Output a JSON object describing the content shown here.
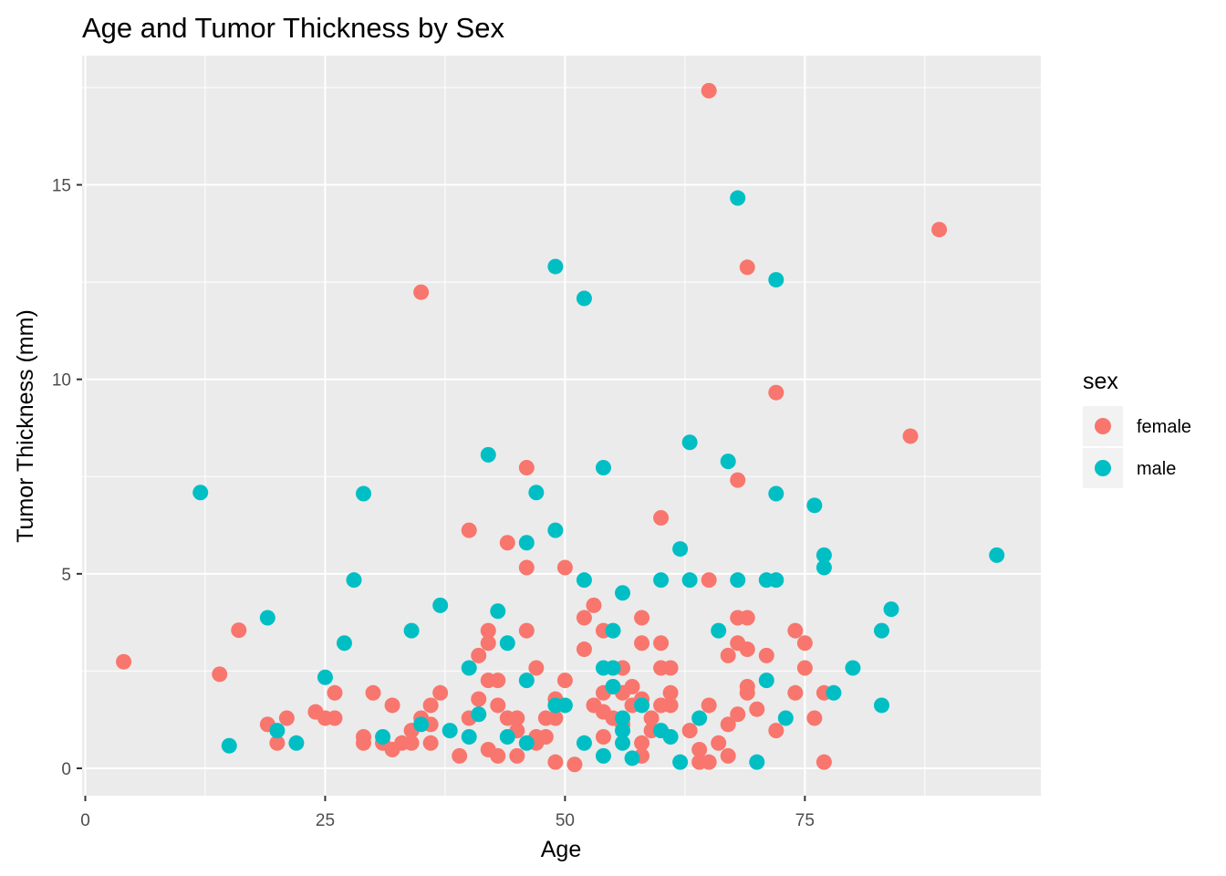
{
  "chart_data": {
    "type": "scatter",
    "title": "Age and Tumor Thickness by Sex",
    "xlabel": "Age",
    "ylabel": "Tumor Thickness (mm)",
    "xlim": [
      0,
      100
    ],
    "ylim": [
      -0.7,
      18
    ],
    "x_ticks": [
      0,
      25,
      50,
      75
    ],
    "x_tick_labels": [
      "0",
      "25",
      "50",
      "75"
    ],
    "y_ticks": [
      0,
      5,
      10,
      15
    ],
    "y_tick_labels": [
      "0",
      "5",
      "10",
      "15"
    ],
    "grid": true,
    "legend_title": "sex",
    "legend_position": "right",
    "series": [
      {
        "name": "female",
        "color": "#F8766D",
        "points": [
          [
            4,
            2.74
          ],
          [
            14,
            2.42
          ],
          [
            16,
            3.55
          ],
          [
            19,
            1.13
          ],
          [
            20,
            0.65
          ],
          [
            21,
            1.29
          ],
          [
            24,
            1.45
          ],
          [
            25,
            1.29
          ],
          [
            26,
            1.94
          ],
          [
            26,
            1.29
          ],
          [
            29,
            0.81
          ],
          [
            29,
            0.65
          ],
          [
            30,
            1.94
          ],
          [
            31,
            0.65
          ],
          [
            32,
            1.62
          ],
          [
            32,
            0.48
          ],
          [
            33,
            0.65
          ],
          [
            34,
            0.97
          ],
          [
            34,
            0.65
          ],
          [
            35,
            12.24
          ],
          [
            35,
            1.29
          ],
          [
            36,
            1.62
          ],
          [
            36,
            1.13
          ],
          [
            36,
            0.65
          ],
          [
            37,
            1.94
          ],
          [
            39,
            0.32
          ],
          [
            40,
            6.12
          ],
          [
            40,
            1.29
          ],
          [
            41,
            2.9
          ],
          [
            41,
            1.78
          ],
          [
            42,
            3.54
          ],
          [
            42,
            3.22
          ],
          [
            42,
            2.26
          ],
          [
            42,
            0.48
          ],
          [
            43,
            2.26
          ],
          [
            43,
            1.62
          ],
          [
            43,
            0.32
          ],
          [
            44,
            5.8
          ],
          [
            44,
            1.29
          ],
          [
            45,
            1.29
          ],
          [
            45,
            0.97
          ],
          [
            45,
            0.32
          ],
          [
            46,
            7.73
          ],
          [
            46,
            5.16
          ],
          [
            46,
            3.54
          ],
          [
            47,
            2.58
          ],
          [
            47,
            0.81
          ],
          [
            47,
            0.65
          ],
          [
            48,
            1.29
          ],
          [
            48,
            0.81
          ],
          [
            49,
            1.78
          ],
          [
            49,
            1.29
          ],
          [
            49,
            0.16
          ],
          [
            50,
            5.16
          ],
          [
            50,
            2.26
          ],
          [
            51,
            0.1
          ],
          [
            52,
            3.87
          ],
          [
            52,
            3.06
          ],
          [
            53,
            4.19
          ],
          [
            53,
            1.62
          ],
          [
            54,
            3.54
          ],
          [
            54,
            1.94
          ],
          [
            54,
            1.45
          ],
          [
            54,
            0.81
          ],
          [
            55,
            1.29
          ],
          [
            56,
            2.58
          ],
          [
            56,
            1.94
          ],
          [
            56,
            1.13
          ],
          [
            57,
            2.1
          ],
          [
            57,
            1.62
          ],
          [
            58,
            3.87
          ],
          [
            58,
            3.22
          ],
          [
            58,
            1.78
          ],
          [
            58,
            0.65
          ],
          [
            58,
            0.32
          ],
          [
            59,
            1.29
          ],
          [
            59,
            0.97
          ],
          [
            60,
            6.44
          ],
          [
            60,
            3.22
          ],
          [
            60,
            2.58
          ],
          [
            60,
            1.62
          ],
          [
            61,
            2.58
          ],
          [
            61,
            1.94
          ],
          [
            61,
            1.62
          ],
          [
            63,
            0.97
          ],
          [
            64,
            0.48
          ],
          [
            64,
            0.16
          ],
          [
            65,
            17.42
          ],
          [
            65,
            4.84
          ],
          [
            65,
            1.62
          ],
          [
            65,
            0.16
          ],
          [
            66,
            0.65
          ],
          [
            67,
            2.9
          ],
          [
            67,
            1.13
          ],
          [
            67,
            0.32
          ],
          [
            68,
            7.41
          ],
          [
            68,
            3.87
          ],
          [
            68,
            3.22
          ],
          [
            68,
            1.39
          ],
          [
            69,
            12.88
          ],
          [
            69,
            3.87
          ],
          [
            69,
            3.06
          ],
          [
            69,
            2.1
          ],
          [
            69,
            1.94
          ],
          [
            70,
            1.52
          ],
          [
            71,
            2.9
          ],
          [
            72,
            9.66
          ],
          [
            72,
            0.97
          ],
          [
            74,
            3.54
          ],
          [
            74,
            1.94
          ],
          [
            75,
            3.22
          ],
          [
            75,
            2.58
          ],
          [
            76,
            1.29
          ],
          [
            77,
            1.94
          ],
          [
            77,
            0.16
          ],
          [
            86,
            8.54
          ],
          [
            89,
            13.85
          ]
        ]
      },
      {
        "name": "male",
        "color": "#00BFC4",
        "points": [
          [
            12,
            7.09
          ],
          [
            15,
            0.58
          ],
          [
            19,
            3.87
          ],
          [
            20,
            0.97
          ],
          [
            22,
            0.65
          ],
          [
            25,
            2.34
          ],
          [
            27,
            3.22
          ],
          [
            28,
            4.84
          ],
          [
            29,
            7.06
          ],
          [
            31,
            0.81
          ],
          [
            34,
            3.54
          ],
          [
            35,
            1.13
          ],
          [
            37,
            4.19
          ],
          [
            38,
            0.97
          ],
          [
            40,
            2.58
          ],
          [
            40,
            0.81
          ],
          [
            41,
            1.39
          ],
          [
            42,
            8.06
          ],
          [
            43,
            4.04
          ],
          [
            44,
            3.22
          ],
          [
            44,
            0.81
          ],
          [
            46,
            5.8
          ],
          [
            46,
            2.26
          ],
          [
            46,
            0.65
          ],
          [
            47,
            7.09
          ],
          [
            49,
            12.9
          ],
          [
            49,
            6.12
          ],
          [
            49,
            1.62
          ],
          [
            50,
            1.62
          ],
          [
            52,
            12.08
          ],
          [
            52,
            4.84
          ],
          [
            52,
            0.65
          ],
          [
            54,
            7.73
          ],
          [
            54,
            2.58
          ],
          [
            54,
            0.32
          ],
          [
            55,
            3.54
          ],
          [
            55,
            2.58
          ],
          [
            55,
            2.1
          ],
          [
            56,
            4.51
          ],
          [
            56,
            1.29
          ],
          [
            56,
            0.97
          ],
          [
            56,
            0.65
          ],
          [
            57,
            0.26
          ],
          [
            58,
            1.62
          ],
          [
            60,
            4.84
          ],
          [
            60,
            0.97
          ],
          [
            61,
            0.81
          ],
          [
            62,
            5.64
          ],
          [
            62,
            0.16
          ],
          [
            63,
            8.38
          ],
          [
            63,
            4.84
          ],
          [
            64,
            1.29
          ],
          [
            66,
            3.54
          ],
          [
            67,
            7.89
          ],
          [
            68,
            14.66
          ],
          [
            68,
            4.84
          ],
          [
            70,
            0.16
          ],
          [
            71,
            4.84
          ],
          [
            71,
            2.26
          ],
          [
            72,
            12.56
          ],
          [
            72,
            7.06
          ],
          [
            72,
            4.84
          ],
          [
            73,
            1.29
          ],
          [
            76,
            6.76
          ],
          [
            77,
            5.48
          ],
          [
            77,
            5.16
          ],
          [
            78,
            1.94
          ],
          [
            80,
            2.58
          ],
          [
            83,
            3.54
          ],
          [
            83,
            1.62
          ],
          [
            84,
            4.09
          ],
          [
            95,
            5.48
          ]
        ]
      }
    ]
  }
}
